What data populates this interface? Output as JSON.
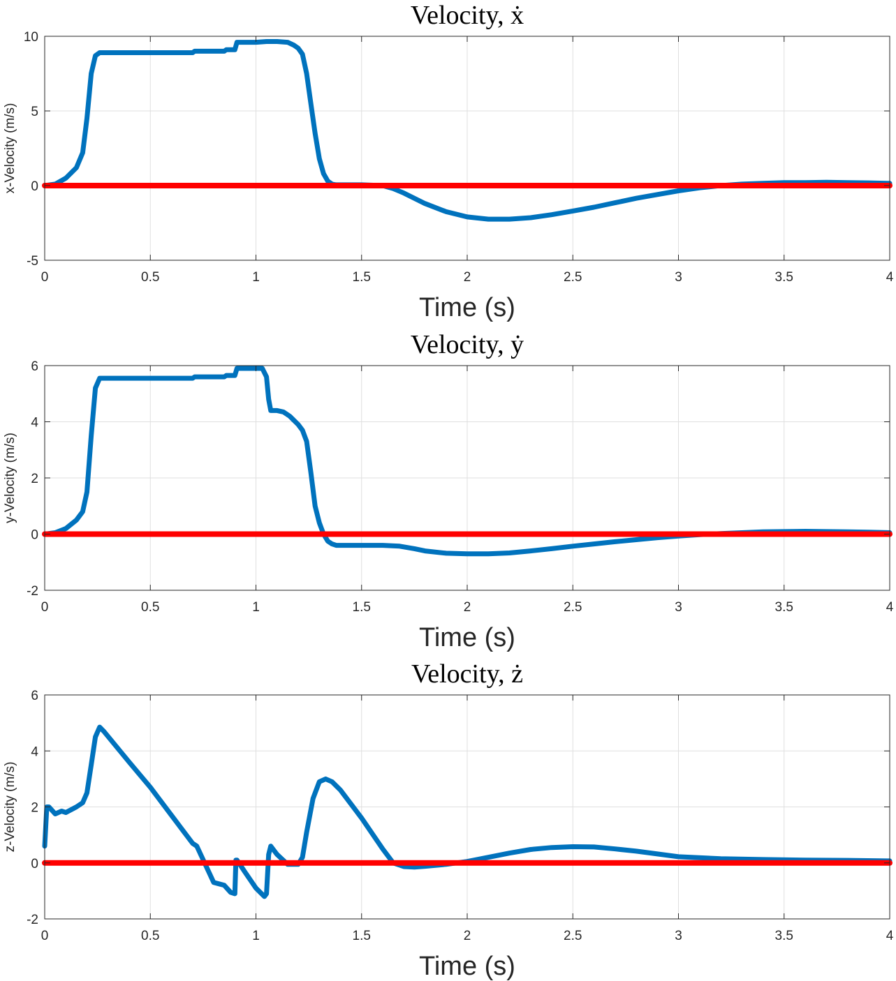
{
  "colors": {
    "series": "#0072BD",
    "reference": "#FF0000",
    "grid": "#DFDFDF",
    "axes": "#262626"
  },
  "chart_data": [
    {
      "type": "line",
      "title": "Velocity, ẋ",
      "xlabel": "Time (s)",
      "ylabel": "x-Velocity (m/s)",
      "xlim": [
        0,
        4
      ],
      "ylim": [
        -5,
        10
      ],
      "xticks": [
        0,
        0.5,
        1,
        1.5,
        2,
        2.5,
        3,
        3.5,
        4
      ],
      "yticks": [
        -5,
        0,
        5,
        10
      ],
      "grid": true,
      "series": [
        {
          "color": "#0072BD",
          "x": [
            0,
            0.05,
            0.1,
            0.15,
            0.18,
            0.2,
            0.22,
            0.24,
            0.26,
            0.28,
            0.4,
            0.5,
            0.6,
            0.7,
            0.71,
            0.8,
            0.85,
            0.86,
            0.9,
            0.91,
            0.95,
            1.0,
            1.05,
            1.1,
            1.15,
            1.18,
            1.2,
            1.22,
            1.24,
            1.26,
            1.28,
            1.3,
            1.32,
            1.34,
            1.36,
            1.38,
            1.4,
            1.45,
            1.5,
            1.6,
            1.65,
            1.7,
            1.8,
            1.9,
            2.0,
            2.1,
            2.2,
            2.3,
            2.4,
            2.5,
            2.6,
            2.7,
            2.8,
            2.9,
            3.0,
            3.1,
            3.2,
            3.3,
            3.4,
            3.5,
            3.6,
            3.7,
            3.8,
            3.9,
            4.0
          ],
          "y": [
            0,
            0.1,
            0.5,
            1.2,
            2.2,
            4.5,
            7.5,
            8.7,
            8.9,
            8.9,
            8.9,
            8.9,
            8.9,
            8.9,
            9.0,
            9.0,
            9.0,
            9.1,
            9.1,
            9.6,
            9.6,
            9.6,
            9.65,
            9.65,
            9.6,
            9.4,
            9.2,
            8.8,
            7.5,
            5.5,
            3.5,
            1.8,
            0.8,
            0.3,
            0.1,
            0.05,
            0.05,
            0.05,
            0.05,
            0.0,
            -0.2,
            -0.5,
            -1.2,
            -1.75,
            -2.1,
            -2.25,
            -2.25,
            -2.15,
            -1.95,
            -1.7,
            -1.45,
            -1.15,
            -0.85,
            -0.6,
            -0.35,
            -0.15,
            0.0,
            0.1,
            0.15,
            0.2,
            0.2,
            0.22,
            0.2,
            0.18,
            0.15
          ]
        },
        {
          "color": "#FF0000",
          "x": [
            0,
            4
          ],
          "y": [
            0,
            0
          ]
        }
      ]
    },
    {
      "type": "line",
      "title": "Velocity, ẏ",
      "xlabel": "Time (s)",
      "ylabel": "y-Velocity (m/s)",
      "xlim": [
        0,
        4
      ],
      "ylim": [
        -2,
        6
      ],
      "xticks": [
        0,
        0.5,
        1,
        1.5,
        2,
        2.5,
        3,
        3.5,
        4
      ],
      "yticks": [
        -2,
        0,
        2,
        4,
        6
      ],
      "grid": true,
      "series": [
        {
          "color": "#0072BD",
          "x": [
            0,
            0.05,
            0.1,
            0.15,
            0.18,
            0.2,
            0.22,
            0.24,
            0.26,
            0.28,
            0.4,
            0.5,
            0.6,
            0.7,
            0.71,
            0.8,
            0.85,
            0.86,
            0.9,
            0.91,
            0.95,
            1.0,
            1.03,
            1.05,
            1.06,
            1.07,
            1.1,
            1.13,
            1.16,
            1.2,
            1.22,
            1.24,
            1.26,
            1.28,
            1.3,
            1.32,
            1.34,
            1.36,
            1.38,
            1.4,
            1.5,
            1.6,
            1.68,
            1.75,
            1.8,
            1.9,
            2.0,
            2.1,
            2.2,
            2.3,
            2.4,
            2.5,
            2.6,
            2.7,
            2.8,
            2.9,
            3.0,
            3.1,
            3.2,
            3.3,
            3.4,
            3.5,
            3.6,
            3.7,
            3.8,
            3.9,
            4.0
          ],
          "y": [
            0,
            0.05,
            0.2,
            0.5,
            0.8,
            1.5,
            3.5,
            5.2,
            5.55,
            5.55,
            5.55,
            5.55,
            5.55,
            5.55,
            5.6,
            5.6,
            5.6,
            5.65,
            5.65,
            5.9,
            5.9,
            5.9,
            5.9,
            5.6,
            4.8,
            4.4,
            4.4,
            4.35,
            4.2,
            3.9,
            3.7,
            3.3,
            2.2,
            1.0,
            0.4,
            0.0,
            -0.25,
            -0.35,
            -0.4,
            -0.4,
            -0.4,
            -0.4,
            -0.43,
            -0.52,
            -0.6,
            -0.68,
            -0.7,
            -0.7,
            -0.67,
            -0.6,
            -0.52,
            -0.43,
            -0.35,
            -0.27,
            -0.2,
            -0.13,
            -0.07,
            -0.02,
            0.02,
            0.05,
            0.08,
            0.09,
            0.1,
            0.09,
            0.08,
            0.07,
            0.05
          ]
        },
        {
          "color": "#FF0000",
          "x": [
            0,
            4
          ],
          "y": [
            0,
            0
          ]
        }
      ]
    },
    {
      "type": "line",
      "title": "Velocity, ż",
      "xlabel": "Time (s)",
      "ylabel": "z-Velocity (m/s)",
      "xlim": [
        0,
        4
      ],
      "ylim": [
        -2,
        6
      ],
      "xticks": [
        0,
        0.5,
        1,
        1.5,
        2,
        2.5,
        3,
        3.5,
        4
      ],
      "yticks": [
        -2,
        0,
        2,
        4,
        6
      ],
      "grid": true,
      "series": [
        {
          "color": "#0072BD",
          "x": [
            0,
            0.01,
            0.02,
            0.05,
            0.08,
            0.1,
            0.15,
            0.18,
            0.2,
            0.22,
            0.24,
            0.26,
            0.28,
            0.4,
            0.5,
            0.6,
            0.7,
            0.72,
            0.8,
            0.85,
            0.88,
            0.9,
            0.905,
            0.91,
            0.95,
            1.0,
            1.04,
            1.05,
            1.06,
            1.07,
            1.1,
            1.15,
            1.2,
            1.22,
            1.24,
            1.27,
            1.3,
            1.33,
            1.36,
            1.4,
            1.5,
            1.6,
            1.65,
            1.7,
            1.75,
            1.8,
            1.9,
            2.0,
            2.1,
            2.2,
            2.3,
            2.4,
            2.5,
            2.6,
            2.7,
            2.8,
            2.9,
            3.0,
            3.2,
            3.4,
            3.6,
            3.8,
            4.0
          ],
          "y": [
            0.6,
            2.0,
            2.0,
            1.75,
            1.85,
            1.8,
            2.0,
            2.15,
            2.5,
            3.5,
            4.5,
            4.85,
            4.7,
            3.6,
            2.7,
            1.7,
            0.7,
            0.6,
            -0.7,
            -0.8,
            -1.05,
            -1.1,
            0.1,
            0.1,
            -0.35,
            -0.9,
            -1.2,
            -1.1,
            0.3,
            0.6,
            0.3,
            -0.05,
            -0.05,
            0.2,
            1.1,
            2.3,
            2.9,
            3.0,
            2.9,
            2.6,
            1.6,
            0.5,
            0.0,
            -0.13,
            -0.15,
            -0.12,
            -0.05,
            0.05,
            0.2,
            0.35,
            0.48,
            0.55,
            0.58,
            0.57,
            0.5,
            0.42,
            0.32,
            0.22,
            0.15,
            0.12,
            0.1,
            0.09,
            0.07
          ]
        },
        {
          "color": "#FF0000",
          "x": [
            0,
            4
          ],
          "y": [
            0,
            0
          ]
        }
      ]
    }
  ]
}
